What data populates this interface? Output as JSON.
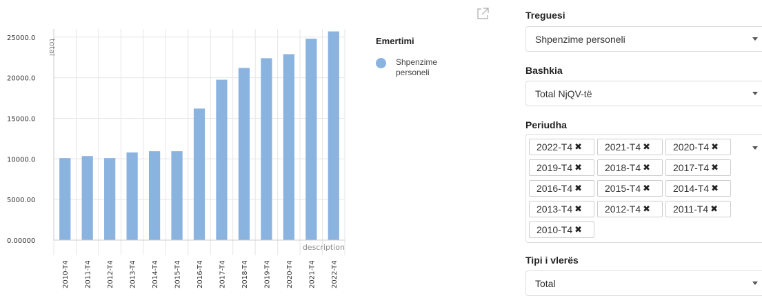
{
  "chart_data": {
    "type": "bar",
    "categories": [
      "2010-T4",
      "2011-T4",
      "2012-T4",
      "2013-T4",
      "2014-T4",
      "2015-T4",
      "2016-T4",
      "2017-T4",
      "2018-T4",
      "2019-T4",
      "2020-T4",
      "2021-T4",
      "2022-T4"
    ],
    "series": [
      {
        "name": "Shpenzime personeli",
        "values": [
          10100,
          10350,
          10100,
          10800,
          10950,
          10950,
          16200,
          19750,
          21200,
          22400,
          22900,
          24800,
          25700
        ]
      }
    ],
    "ylabel": "total",
    "xlabel": "description",
    "ylim": [
      0,
      26000
    ],
    "yticks": [
      "0.00000",
      "5000.00",
      "10000.0",
      "15000.0",
      "20000.0",
      "25000.0"
    ],
    "ytick_values": [
      0,
      5000,
      10000,
      15000,
      20000,
      25000
    ],
    "grid": true,
    "bar_color": "#8bb3e0",
    "legend": {
      "title": "Emertimi",
      "placement": "right"
    }
  },
  "legend": {
    "title": "Emertimi",
    "items": [
      {
        "label": "Shpenzime personeli",
        "color": "#8bb3e0"
      }
    ]
  },
  "filters": {
    "treguesi": {
      "label": "Treguesi",
      "value": "Shpenzime personeli"
    },
    "bashkia": {
      "label": "Bashkia",
      "value": "Total NjQV-të"
    },
    "periudha": {
      "label": "Periudha",
      "chips": [
        "2022-T4",
        "2021-T4",
        "2020-T4",
        "2019-T4",
        "2018-T4",
        "2017-T4",
        "2016-T4",
        "2015-T4",
        "2014-T4",
        "2013-T4",
        "2012-T4",
        "2011-T4",
        "2010-T4"
      ],
      "remove_glyph": "✖"
    },
    "tipi": {
      "label": "Tipi i vlerës",
      "value": "Total"
    }
  },
  "icons": {
    "export": "external-link-icon",
    "dropdown": "chevron-down-icon"
  }
}
